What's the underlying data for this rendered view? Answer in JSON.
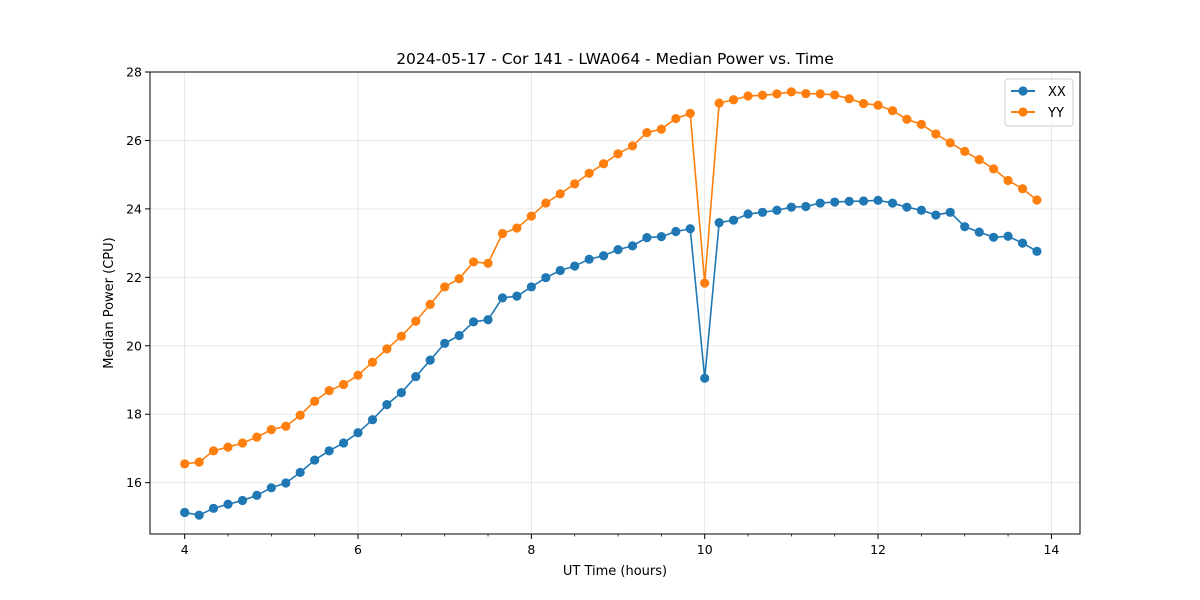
{
  "chart_data": {
    "type": "line",
    "title": "2024-05-17 - Cor 141 - LWA064 - Median Power vs. Time",
    "xlabel": "UT Time (hours)",
    "ylabel": "Median Power (CPU)",
    "xlim": [
      3.6,
      14.33
    ],
    "ylim": [
      14.5,
      28
    ],
    "xticks": [
      4,
      6,
      8,
      10,
      12,
      14
    ],
    "yticks": [
      16,
      18,
      20,
      22,
      24,
      26,
      28
    ],
    "grid": true,
    "legend_position": "top-right",
    "x": [
      4.0,
      4.167,
      4.333,
      4.5,
      4.667,
      4.833,
      5.0,
      5.167,
      5.333,
      5.5,
      5.667,
      5.833,
      6.0,
      6.167,
      6.333,
      6.5,
      6.667,
      6.833,
      7.0,
      7.167,
      7.333,
      7.5,
      7.667,
      7.833,
      8.0,
      8.167,
      8.333,
      8.5,
      8.667,
      8.833,
      9.0,
      9.167,
      9.333,
      9.5,
      9.667,
      9.833,
      10.0,
      10.167,
      10.333,
      10.5,
      10.667,
      10.833,
      11.0,
      11.167,
      11.333,
      11.5,
      11.667,
      11.833,
      12.0,
      12.167,
      12.333,
      12.5,
      12.667,
      12.833,
      13.0,
      13.167,
      13.333,
      13.5,
      13.667,
      13.833
    ],
    "series": [
      {
        "name": "XX",
        "color": "#1f77b4",
        "values": [
          15.13,
          15.05,
          15.25,
          15.37,
          15.48,
          15.63,
          15.85,
          15.99,
          16.3,
          16.66,
          16.93,
          17.16,
          17.46,
          17.84,
          18.28,
          18.63,
          19.1,
          19.58,
          20.07,
          20.3,
          20.7,
          20.76,
          21.4,
          21.45,
          21.72,
          21.99,
          22.2,
          22.33,
          22.53,
          22.63,
          22.81,
          22.92,
          23.16,
          23.19,
          23.34,
          23.42,
          19.05,
          23.6,
          23.67,
          23.85,
          23.9,
          23.96,
          24.05,
          24.07,
          24.17,
          24.2,
          24.22,
          24.23,
          24.25,
          24.17,
          24.05,
          23.96,
          23.82,
          23.9,
          23.48,
          23.32,
          23.17,
          23.2,
          23.0,
          22.76
        ]
      },
      {
        "name": "YY",
        "color": "#ff7f0e",
        "values": [
          16.55,
          16.6,
          16.93,
          17.04,
          17.16,
          17.33,
          17.55,
          17.65,
          17.97,
          18.38,
          18.69,
          18.87,
          19.14,
          19.52,
          19.91,
          20.28,
          20.72,
          21.21,
          21.72,
          21.96,
          22.45,
          22.41,
          23.28,
          23.44,
          23.79,
          24.17,
          24.44,
          24.73,
          25.04,
          25.32,
          25.61,
          25.84,
          26.23,
          26.33,
          26.64,
          26.79,
          21.83,
          27.09,
          27.19,
          27.3,
          27.32,
          27.36,
          27.42,
          27.37,
          27.36,
          27.33,
          27.22,
          27.08,
          27.03,
          26.87,
          26.62,
          26.47,
          26.19,
          25.93,
          25.68,
          25.44,
          25.17,
          24.83,
          24.59,
          24.26
        ]
      }
    ]
  }
}
